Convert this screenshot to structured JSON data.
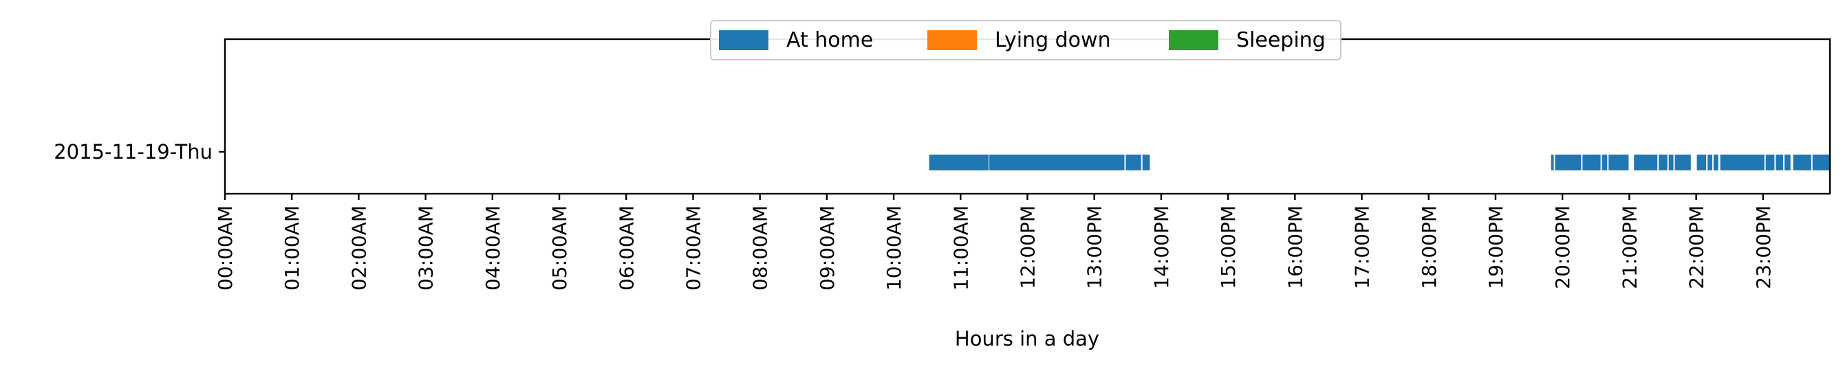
{
  "chart_data": {
    "type": "timeline",
    "title": "",
    "xlabel": "Hours in a day",
    "ylabel": "",
    "xlim_hours": [
      0,
      24
    ],
    "grid": false,
    "legend_position": "top-center",
    "x_tick_labels": [
      "00:00AM",
      "01:00AM",
      "02:00AM",
      "03:00AM",
      "04:00AM",
      "05:00AM",
      "06:00AM",
      "07:00AM",
      "08:00AM",
      "09:00AM",
      "10:00AM",
      "11:00AM",
      "12:00PM",
      "13:00PM",
      "14:00PM",
      "15:00PM",
      "16:00PM",
      "17:00PM",
      "18:00PM",
      "19:00PM",
      "20:00PM",
      "21:00PM",
      "22:00PM",
      "23:00PM"
    ],
    "rows": [
      "2015-11-19-Thu"
    ],
    "series": [
      {
        "name": "At home",
        "color": "#1f77b4",
        "intervals": [
          [
            "2015-11-19-Thu",
            10.53,
            11.42
          ],
          [
            "2015-11-19-Thu",
            11.43,
            13.45
          ],
          [
            "2015-11-19-Thu",
            13.47,
            13.7
          ],
          [
            "2015-11-19-Thu",
            13.72,
            13.83
          ],
          [
            "2015-11-19-Thu",
            19.83,
            19.87
          ],
          [
            "2015-11-19-Thu",
            19.89,
            20.28
          ],
          [
            "2015-11-19-Thu",
            20.3,
            20.57
          ],
          [
            "2015-11-19-Thu",
            20.59,
            20.67
          ],
          [
            "2015-11-19-Thu",
            20.69,
            20.99
          ],
          [
            "2015-11-19-Thu",
            21.07,
            21.42
          ],
          [
            "2015-11-19-Thu",
            21.44,
            21.57
          ],
          [
            "2015-11-19-Thu",
            21.59,
            21.66
          ],
          [
            "2015-11-19-Thu",
            21.68,
            21.92
          ],
          [
            "2015-11-19-Thu",
            22.01,
            22.15
          ],
          [
            "2015-11-19-Thu",
            22.17,
            22.24
          ],
          [
            "2015-11-19-Thu",
            22.26,
            22.33
          ],
          [
            "2015-11-19-Thu",
            22.36,
            23.02
          ],
          [
            "2015-11-19-Thu",
            23.04,
            23.17
          ],
          [
            "2015-11-19-Thu",
            23.19,
            23.3
          ],
          [
            "2015-11-19-Thu",
            23.32,
            23.41
          ],
          [
            "2015-11-19-Thu",
            23.45,
            23.72
          ],
          [
            "2015-11-19-Thu",
            23.74,
            24.0
          ]
        ]
      },
      {
        "name": "Lying down",
        "color": "#ff7f0e",
        "intervals": []
      },
      {
        "name": "Sleeping",
        "color": "#2ca02c",
        "intervals": []
      }
    ]
  }
}
